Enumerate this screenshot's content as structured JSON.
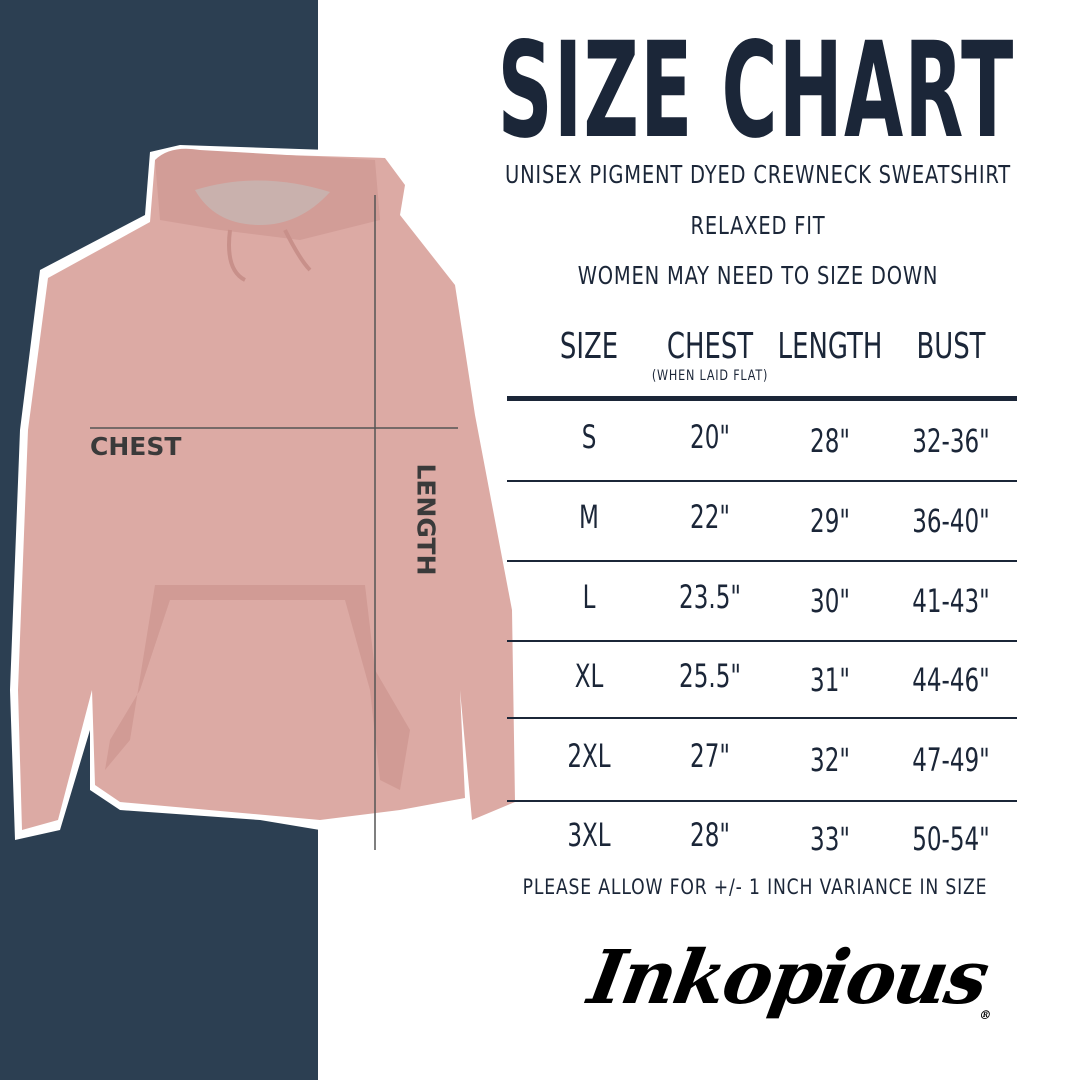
{
  "title": "SIZE CHART",
  "subtitle_lines": [
    "UNISEX PIGMENT DYED CREWNECK SWEATSHIRT",
    "RELAXED FIT",
    "WOMEN MAY NEED TO SIZE DOWN"
  ],
  "table": {
    "headers": [
      "SIZE",
      "CHEST",
      "LENGTH",
      "BUST"
    ],
    "chest_note": "(WHEN LAID FLAT)",
    "rows": [
      [
        "S",
        "20\"",
        "28\"",
        "32-36\""
      ],
      [
        "M",
        "22\"",
        "29\"",
        "36-40\""
      ],
      [
        "L",
        "23.5\"",
        "30\"",
        "41-43\""
      ],
      [
        "XL",
        "25.5\"",
        "31\"",
        "44-46\""
      ],
      [
        "2XL",
        "27\"",
        "32\"",
        "47-49\""
      ],
      [
        "3XL",
        "28\"",
        "33\"",
        "50-54\""
      ]
    ]
  },
  "footer_note": "PLEASE ALLOW FOR +/- 1 INCH VARIANCE IN SIZE",
  "image_labels": {
    "chest": "CHEST",
    "length": "LENGTH"
  },
  "brand": {
    "logo_text": "Inkopious",
    "registered_mark": "®"
  },
  "colors": {
    "band": "#2c3f52",
    "text": "#1b2638",
    "garment": "#dcaaa4"
  }
}
